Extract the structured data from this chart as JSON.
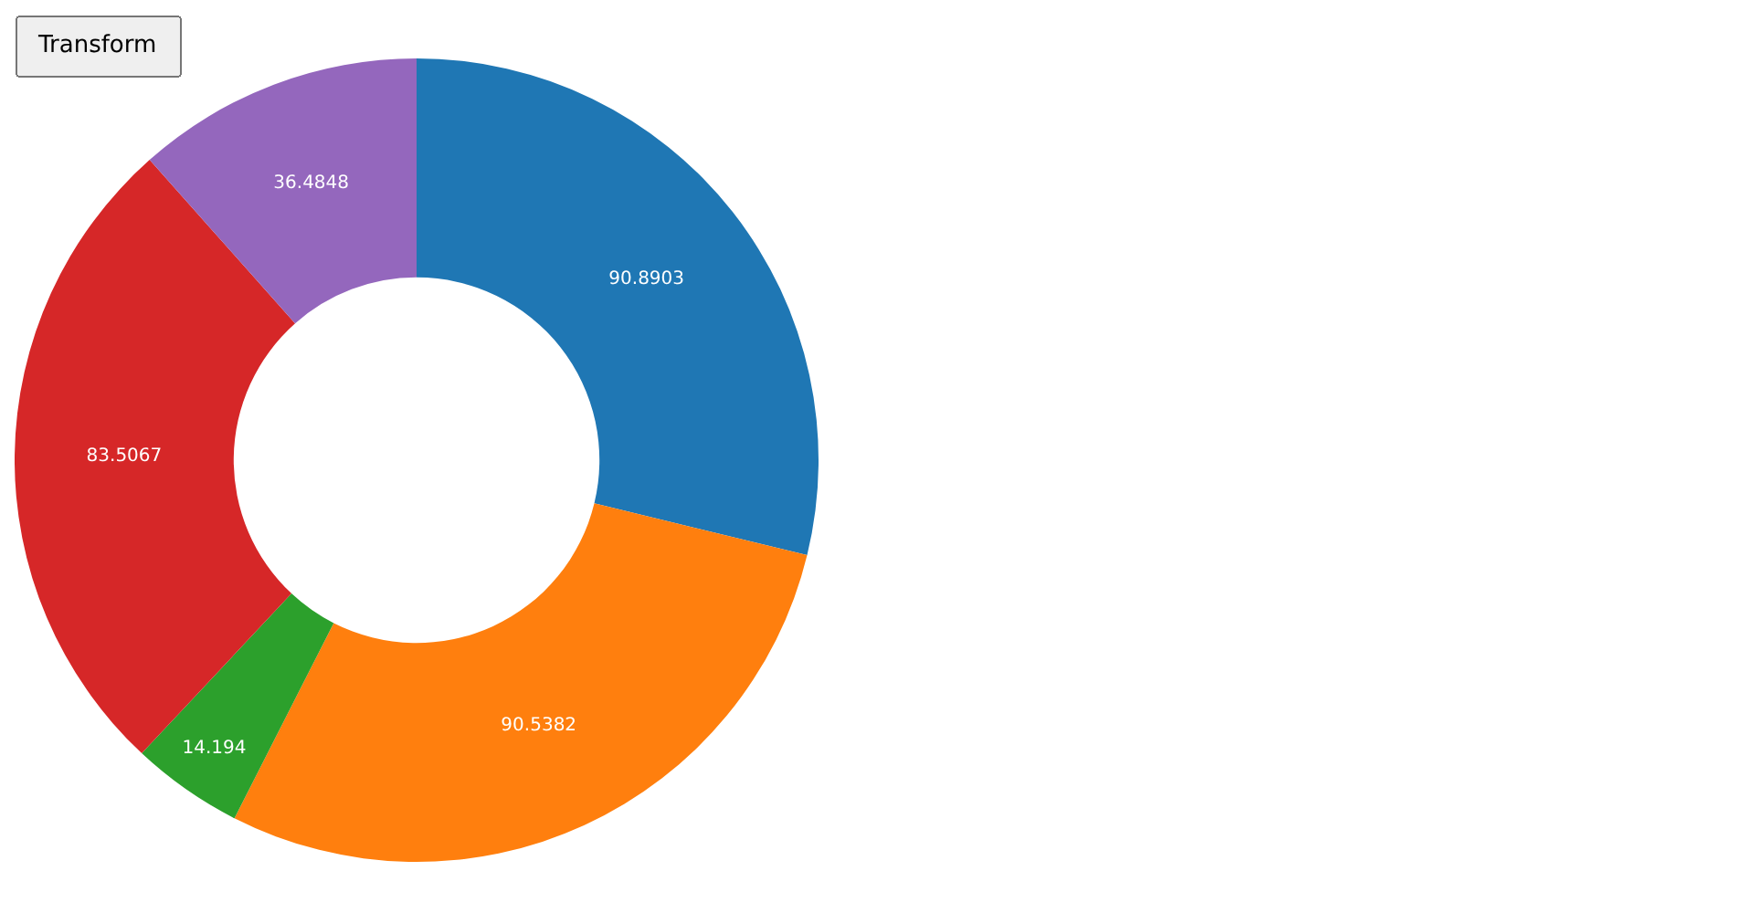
{
  "chart_data": {
    "type": "donut",
    "categories": [
      null,
      null,
      null,
      null,
      null
    ],
    "values": [
      90.8903,
      90.5382,
      14.194,
      83.5067,
      36.4848
    ],
    "colors": [
      "#1f77b4",
      "#ff7f0e",
      "#2ca02c",
      "#d62728",
      "#9467bd"
    ],
    "data_labels": true,
    "legend": false,
    "annotations": [
      "Transform"
    ]
  }
}
